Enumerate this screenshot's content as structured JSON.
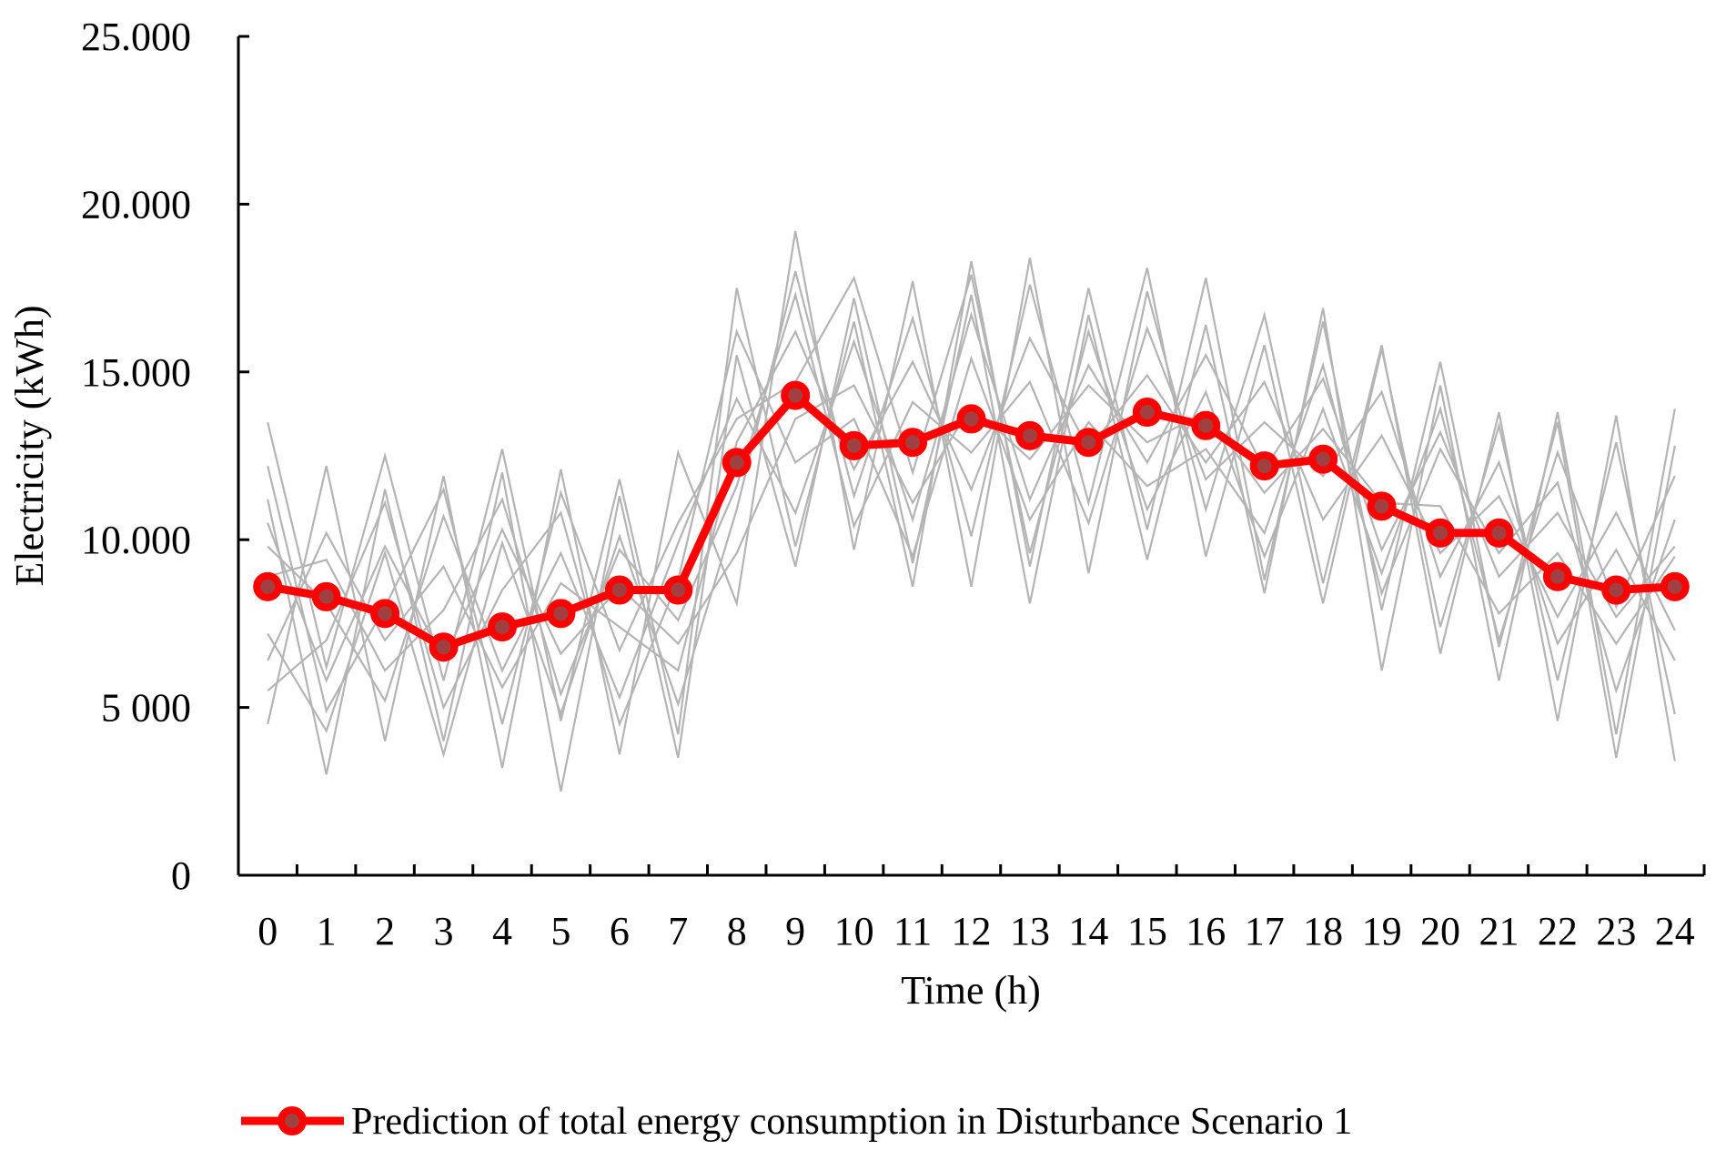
{
  "chart_data": {
    "type": "line",
    "title": "",
    "xlabel": "Time (h)",
    "ylabel": "Electricity (kWh)",
    "ylim": [
      0,
      25000
    ],
    "yticks": [
      0,
      5000,
      10000,
      15000,
      20000,
      25000
    ],
    "ytick_labels": [
      "0",
      "5 000",
      "10.000",
      "15.000",
      "20.000",
      "25.000"
    ],
    "categories": [
      "0",
      "1",
      "2",
      "3",
      "4",
      "5",
      "6",
      "7",
      "8",
      "9",
      "10",
      "11",
      "12",
      "13",
      "14",
      "15",
      "16",
      "17",
      "18",
      "19",
      "20",
      "21",
      "22",
      "23",
      "24"
    ],
    "grid": false,
    "legend_position": "bottom",
    "series": [
      {
        "name": "Prediction of total energy consumption in Disturbance Scenario 1",
        "color": "#ff0000",
        "marker_center_color": "#a04040",
        "values": [
          8600,
          8300,
          7800,
          6800,
          7400,
          7800,
          8500,
          8500,
          12300,
          14300,
          12800,
          12900,
          13600,
          13100,
          12900,
          13800,
          13400,
          12200,
          12400,
          11000,
          10200,
          10200,
          8900,
          8500,
          8600
        ]
      }
    ],
    "background_series": {
      "color": "#b4b4b4",
      "label": "",
      "values": [
        [
          13500,
          6200,
          12500,
          5800,
          12700,
          4600,
          11800,
          4200,
          17500,
          9800,
          16500,
          8600,
          18300,
          9200,
          17500,
          10300,
          17800,
          8800,
          16500,
          7900,
          15300,
          6800,
          13500,
          3500,
          12800
        ],
        [
          4500,
          12200,
          4000,
          11900,
          3200,
          12100,
          3600,
          12600,
          8100,
          19200,
          9700,
          17700,
          8600,
          18400,
          9000,
          17400,
          10900,
          16700,
          8700,
          15800,
          6600,
          13800,
          4600,
          13700,
          3400
        ],
        [
          11200,
          3000,
          11500,
          4000,
          12000,
          2500,
          11300,
          3500,
          15500,
          9200,
          17200,
          9300,
          17300,
          8100,
          16700,
          9400,
          16400,
          8400,
          16900,
          6100,
          14600,
          5800,
          13800,
          4200,
          13900
        ],
        [
          7200,
          4300,
          9600,
          3600,
          9900,
          4800,
          10100,
          5100,
          10900,
          18000,
          11300,
          16600,
          10100,
          17600,
          11100,
          18100,
          9500,
          15800,
          8100,
          15700,
          7400,
          13400,
          5800,
          12900,
          4800
        ],
        [
          9800,
          8100,
          5200,
          10700,
          6100,
          9600,
          5300,
          9900,
          14200,
          10800,
          15900,
          10600,
          16700,
          11200,
          15200,
          12300,
          15500,
          12100,
          14800,
          9700,
          13200,
          8900,
          10800,
          7700,
          9800
        ],
        [
          6400,
          10200,
          7000,
          9200,
          5600,
          8700,
          7400,
          6100,
          12900,
          16200,
          12100,
          15300,
          11500,
          16000,
          12700,
          14900,
          12300,
          14700,
          10600,
          13100,
          9600,
          11300,
          7700,
          10800,
          7300
        ],
        [
          10500,
          5800,
          9800,
          6400,
          10300,
          6600,
          8600,
          6900,
          9600,
          13600,
          14600,
          11100,
          14000,
          12400,
          14600,
          12900,
          13800,
          11400,
          13300,
          11100,
          11000,
          7800,
          9600,
          6900,
          9500
        ],
        [
          5500,
          7000,
          11100,
          5000,
          8500,
          10800,
          4500,
          8800,
          16200,
          12300,
          13600,
          9500,
          15400,
          10600,
          13500,
          11600,
          12700,
          10200,
          15200,
          8400,
          12700,
          9600,
          11700,
          5500,
          10600
        ],
        [
          8900,
          9400,
          6100,
          7900,
          11200,
          5400,
          9700,
          7600,
          11600,
          17300,
          10400,
          14100,
          12600,
          14700,
          10500,
          16300,
          11800,
          13500,
          11900,
          14400,
          8900,
          12300,
          6900,
          9700,
          6400
        ],
        [
          12200,
          4900,
          8000,
          11500,
          4500,
          11400,
          6700,
          10500,
          13600,
          14700,
          17800,
          12000,
          17900,
          9600,
          16200,
          10900,
          14400,
          9500,
          13900,
          9000,
          13900,
          7000,
          12600,
          8000,
          11900
        ]
      ]
    }
  }
}
